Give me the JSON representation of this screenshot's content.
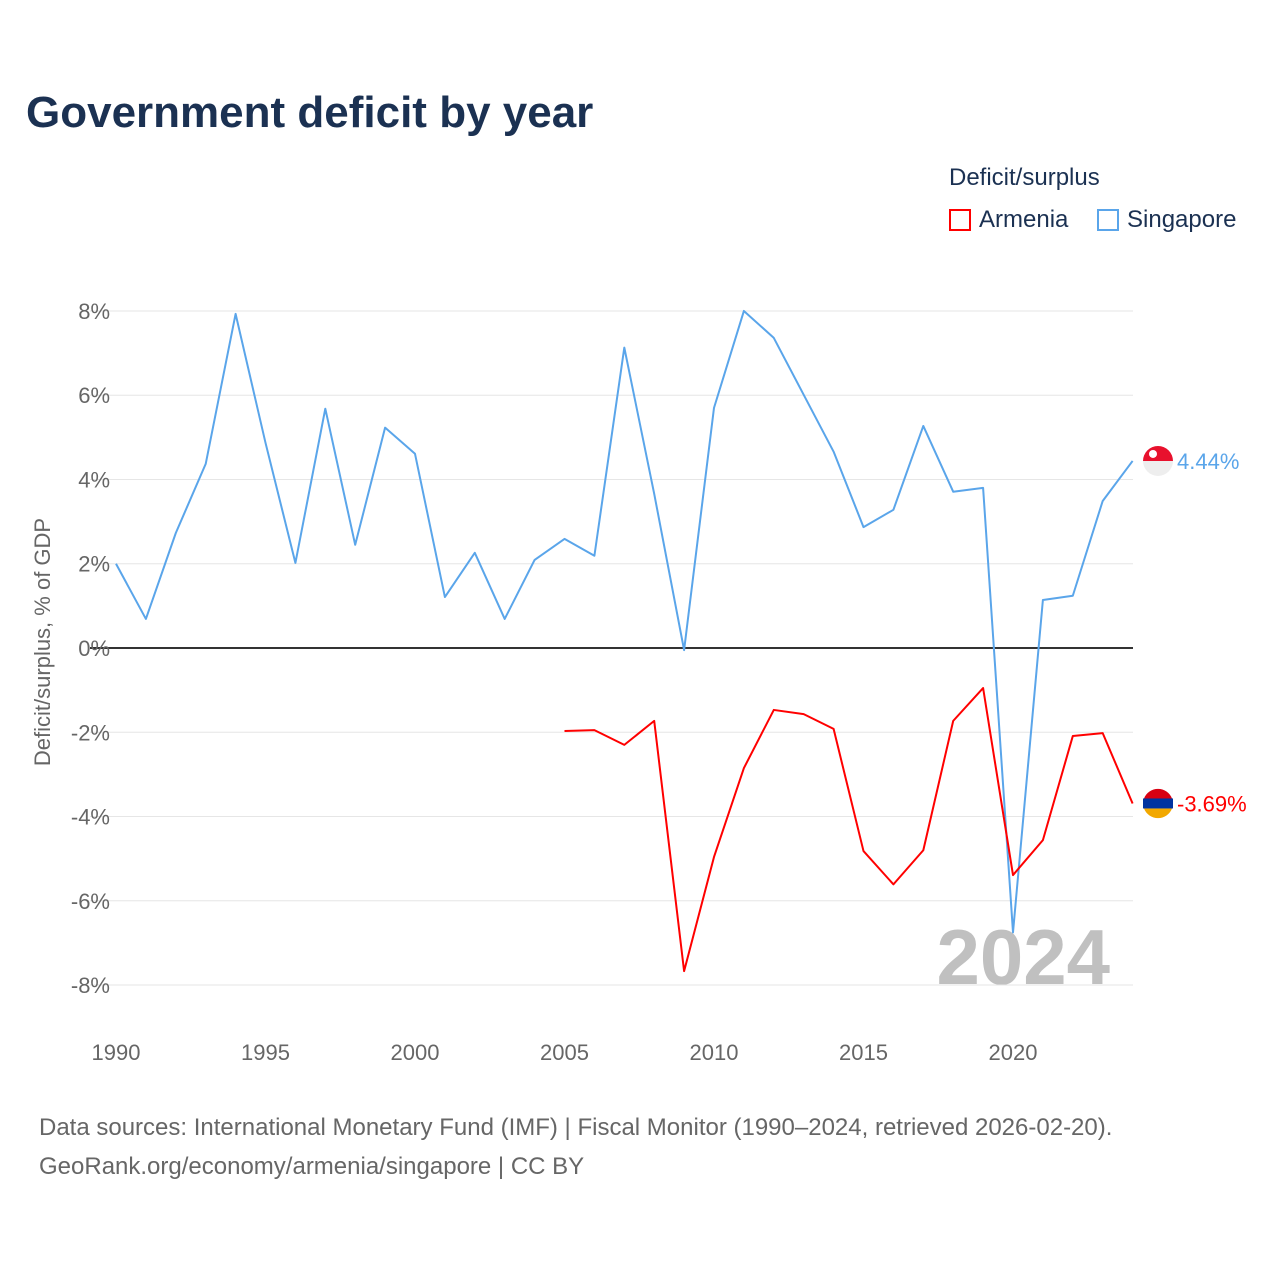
{
  "title": "Government deficit by year",
  "legend": {
    "title": "Deficit/surplus",
    "items": [
      {
        "name": "Armenia",
        "color": "#ff0000"
      },
      {
        "name": "Singapore",
        "color": "#5aa5ea"
      }
    ]
  },
  "watermark_year": "2024",
  "source_lines": [
    "Data sources: International Monetary Fund (IMF) | Fiscal Monitor (1990–2024, retrieved 2026-02-20).",
    "GeoRank.org/economy/armenia/singapore | CC BY"
  ],
  "chart_data": {
    "type": "line",
    "title": "Government deficit by year",
    "xlabel": "",
    "ylabel": "Deficit/surplus, % of GDP",
    "xlim": [
      1990,
      2024
    ],
    "ylim": [
      -9,
      8
    ],
    "yticks": [
      8,
      6,
      4,
      2,
      0,
      -2,
      -4,
      -6,
      -8
    ],
    "ytick_labels": [
      "8%",
      "6%",
      "4%",
      "2%",
      "0%",
      "-2%",
      "-4%",
      "-6%",
      "-8%"
    ],
    "xticks": [
      1990,
      1995,
      2000,
      2005,
      2010,
      2015,
      2020
    ],
    "xtick_labels": [
      "1990",
      "1995",
      "2000",
      "2005",
      "2010",
      "2015",
      "2020"
    ],
    "grid": true,
    "legend_position": "top-right",
    "series": [
      {
        "name": "Singapore",
        "color": "#5aa5ea",
        "end_label": "4.44%",
        "x": [
          1990,
          1991,
          1992,
          1993,
          1994,
          1995,
          1996,
          1997,
          1998,
          1999,
          2000,
          2001,
          2002,
          2003,
          2004,
          2005,
          2006,
          2007,
          2008,
          2009,
          2010,
          2011,
          2012,
          2013,
          2014,
          2015,
          2016,
          2017,
          2018,
          2019,
          2020,
          2021,
          2022,
          2023,
          2024
        ],
        "values": [
          2.0,
          0.69,
          2.73,
          4.37,
          7.93,
          4.87,
          2.02,
          5.68,
          2.45,
          5.23,
          4.61,
          1.21,
          2.26,
          0.69,
          2.09,
          2.59,
          2.19,
          7.13,
          3.66,
          -0.05,
          5.7,
          8.0,
          7.36,
          6.01,
          4.66,
          2.87,
          3.28,
          5.27,
          3.71,
          3.8,
          -6.75,
          1.14,
          1.24,
          3.49,
          4.44
        ]
      },
      {
        "name": "Armenia",
        "color": "#ff0000",
        "end_label": "-3.69%",
        "x": [
          2005,
          2006,
          2007,
          2008,
          2009,
          2010,
          2011,
          2012,
          2013,
          2014,
          2015,
          2016,
          2017,
          2018,
          2019,
          2020,
          2021,
          2022,
          2023,
          2024
        ],
        "values": [
          -1.97,
          -1.95,
          -2.3,
          -1.73,
          -7.67,
          -4.96,
          -2.85,
          -1.47,
          -1.57,
          -1.92,
          -4.82,
          -5.61,
          -4.8,
          -1.73,
          -0.95,
          -5.39,
          -4.56,
          -2.09,
          -2.02,
          -3.69
        ]
      }
    ]
  }
}
